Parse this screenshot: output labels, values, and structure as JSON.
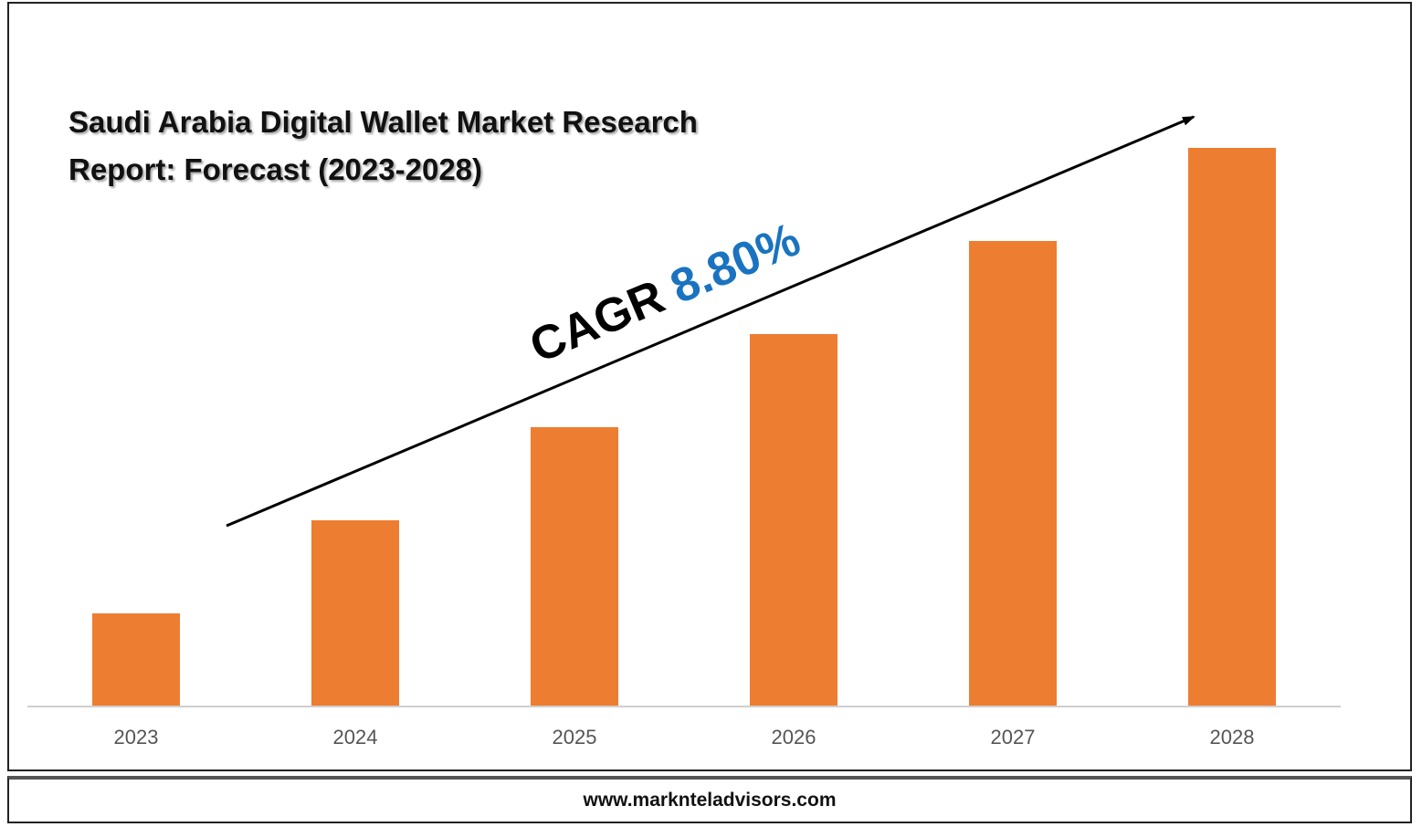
{
  "chart_data": {
    "type": "bar",
    "title": "Saudi Arabia Digital Wallet Market Research Report: Forecast (2023-2028)",
    "categories": [
      "2023",
      "2024",
      "2025",
      "2026",
      "2027",
      "2028"
    ],
    "values": [
      1,
      2,
      3,
      4,
      5,
      6
    ],
    "bar_color": "#ed7d31",
    "ylim": [
      0,
      6
    ],
    "grid": false,
    "legend": "none",
    "annotation": {
      "label": "CAGR",
      "value": "8.80%",
      "label_color": "#000000",
      "value_color": "#1a73c0"
    }
  },
  "footer": {
    "website": "www.marknteladvisors.com"
  }
}
